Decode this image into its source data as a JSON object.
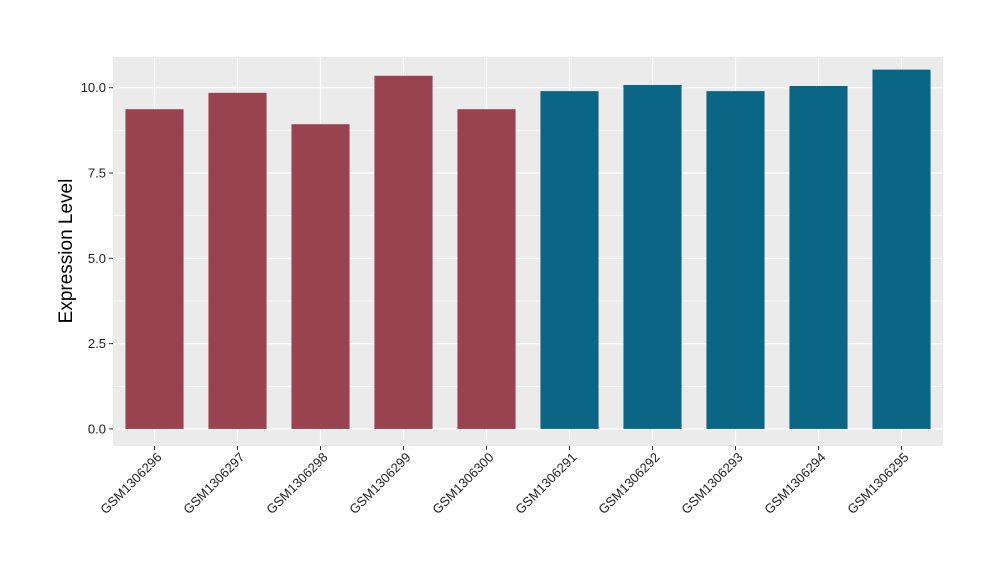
{
  "chart_data": {
    "type": "bar",
    "title": "",
    "xlabel": "",
    "ylabel": "Expression Level",
    "ylim": [
      -0.5,
      10.9
    ],
    "yticks": [
      0.0,
      2.5,
      5.0,
      7.5,
      10.0
    ],
    "ytick_labels": [
      "0.0",
      "2.5",
      "5.0",
      "7.5",
      "10.0"
    ],
    "grid": true,
    "legend": "none",
    "categories": [
      "GSM1306296",
      "GSM1306297",
      "GSM1306298",
      "GSM1306299",
      "GSM1306300",
      "GSM1306291",
      "GSM1306292",
      "GSM1306293",
      "GSM1306294",
      "GSM1306295"
    ],
    "values": [
      9.37,
      9.85,
      8.93,
      10.35,
      9.37,
      9.9,
      10.08,
      9.9,
      10.05,
      10.53
    ],
    "bar_colors": [
      "#9a4350",
      "#9a4350",
      "#9a4350",
      "#9a4350",
      "#9a4350",
      "#0b6585",
      "#0b6585",
      "#0b6585",
      "#0b6585",
      "#0b6585"
    ],
    "panel_background": "#ebebeb",
    "grid_color": "#ffffff"
  }
}
